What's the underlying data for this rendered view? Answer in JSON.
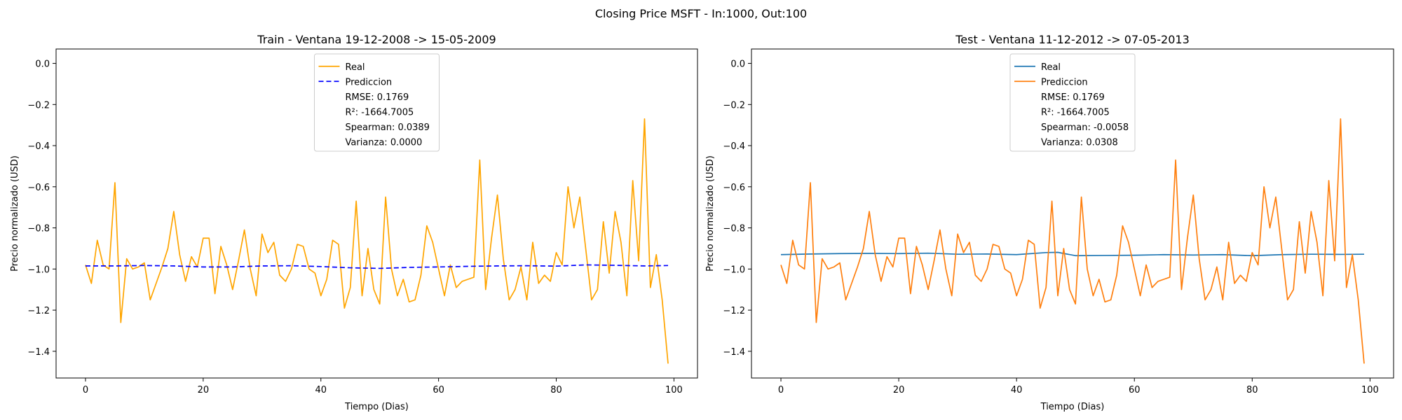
{
  "suptitle": "Closing Price MSFT - In:1000, Out:100",
  "chart_data": [
    {
      "type": "line",
      "title": "Train - Ventana 19-12-2008 -> 15-05-2009",
      "xlabel": "Tiempo (Dias)",
      "ylabel": "Precio normalizado (USD)",
      "xlim": [
        -5,
        104
      ],
      "ylim": [
        -1.53,
        0.07
      ],
      "xticks": [
        0,
        20,
        40,
        60,
        80,
        100
      ],
      "yticks": [
        0.0,
        -0.2,
        -0.4,
        -0.6,
        -0.8,
        -1.0,
        -1.2,
        -1.4
      ],
      "legend_position": "upper center",
      "series": [
        {
          "name": "Real",
          "color": "#ffa500",
          "style": "solid",
          "x": [
            0,
            1,
            2,
            3,
            4,
            5,
            6,
            7,
            8,
            9,
            10,
            11,
            12,
            13,
            14,
            15,
            16,
            17,
            18,
            19,
            20,
            21,
            22,
            23,
            24,
            25,
            26,
            27,
            28,
            29,
            30,
            31,
            32,
            33,
            34,
            35,
            36,
            37,
            38,
            39,
            40,
            41,
            42,
            43,
            44,
            45,
            46,
            47,
            48,
            49,
            50,
            51,
            52,
            53,
            54,
            55,
            56,
            57,
            58,
            59,
            60,
            61,
            62,
            63,
            64,
            65,
            66,
            67,
            68,
            69,
            70,
            71,
            72,
            73,
            74,
            75,
            76,
            77,
            78,
            79,
            80,
            81,
            82,
            83,
            84,
            85,
            86,
            87,
            88,
            89,
            90,
            91,
            92,
            93,
            94,
            95,
            96,
            97,
            98,
            99
          ],
          "values": [
            -0.98,
            -1.07,
            -0.86,
            -0.98,
            -1.0,
            -0.58,
            -1.26,
            -0.95,
            -1.0,
            -0.99,
            -0.97,
            -1.15,
            -1.07,
            -0.99,
            -0.9,
            -0.72,
            -0.93,
            -1.06,
            -0.94,
            -0.99,
            -0.85,
            -0.85,
            -1.12,
            -0.89,
            -0.98,
            -1.1,
            -0.96,
            -0.81,
            -1.0,
            -1.13,
            -0.83,
            -0.92,
            -0.87,
            -1.03,
            -1.06,
            -1.0,
            -0.88,
            -0.89,
            -1.0,
            -1.02,
            -1.13,
            -1.05,
            -0.86,
            -0.88,
            -1.19,
            -1.09,
            -0.67,
            -1.13,
            -0.9,
            -1.1,
            -1.17,
            -0.65,
            -1.0,
            -1.13,
            -1.05,
            -1.16,
            -1.15,
            -1.03,
            -0.79,
            -0.87,
            -1.0,
            -1.13,
            -0.98,
            -1.09,
            -1.06,
            -1.05,
            -1.04,
            -0.47,
            -1.1,
            -0.85,
            -0.64,
            -0.95,
            -1.15,
            -1.1,
            -0.99,
            -1.15,
            -0.87,
            -1.07,
            -1.03,
            -1.06,
            -0.92,
            -0.98,
            -0.6,
            -0.8,
            -0.65,
            -0.9,
            -1.15,
            -1.1,
            -0.77,
            -1.02,
            -0.72,
            -0.87,
            -1.13,
            -0.57,
            -0.96,
            -0.27,
            -1.09,
            -0.93,
            -1.15,
            -1.46
          ]
        },
        {
          "name": "Prediccion",
          "color": "#0000ff",
          "style": "dashed",
          "x": [
            0,
            5,
            10,
            15,
            20,
            25,
            30,
            35,
            40,
            45,
            50,
            55,
            60,
            65,
            70,
            75,
            80,
            85,
            90,
            95,
            99
          ],
          "values": [
            -0.985,
            -0.985,
            -0.983,
            -0.985,
            -0.99,
            -0.99,
            -0.985,
            -0.984,
            -0.988,
            -0.994,
            -0.997,
            -0.992,
            -0.99,
            -0.987,
            -0.985,
            -0.984,
            -0.986,
            -0.98,
            -0.982,
            -0.985,
            -0.983
          ]
        }
      ],
      "metrics": [
        "RMSE: 0.1769",
        "R²: -1664.7005",
        "Spearman: 0.0389",
        "Varianza: 0.0000"
      ]
    },
    {
      "type": "line",
      "title": "Test - Ventana 11-12-2012 -> 07-05-2013",
      "xlabel": "Tiempo (Dias)",
      "ylabel": "Precio normalizado (USD)",
      "xlim": [
        -5,
        104
      ],
      "ylim": [
        -1.53,
        0.07
      ],
      "xticks": [
        0,
        20,
        40,
        60,
        80,
        100
      ],
      "yticks": [
        0.0,
        -0.2,
        -0.4,
        -0.6,
        -0.8,
        -1.0,
        -1.2,
        -1.4
      ],
      "legend_position": "upper center",
      "series": [
        {
          "name": "Real",
          "color": "#1f77b4",
          "style": "solid",
          "x": [
            0,
            5,
            10,
            15,
            20,
            25,
            30,
            35,
            40,
            45,
            47,
            50,
            55,
            60,
            65,
            70,
            75,
            80,
            85,
            90,
            95,
            99
          ],
          "values": [
            -0.93,
            -0.927,
            -0.925,
            -0.924,
            -0.925,
            -0.923,
            -0.928,
            -0.927,
            -0.93,
            -0.92,
            -0.919,
            -0.935,
            -0.934,
            -0.933,
            -0.93,
            -0.932,
            -0.93,
            -0.935,
            -0.93,
            -0.928,
            -0.929,
            -0.928
          ]
        },
        {
          "name": "Prediccion",
          "color": "#ff7f0e",
          "style": "solid",
          "x": [
            0,
            1,
            2,
            3,
            4,
            5,
            6,
            7,
            8,
            9,
            10,
            11,
            12,
            13,
            14,
            15,
            16,
            17,
            18,
            19,
            20,
            21,
            22,
            23,
            24,
            25,
            26,
            27,
            28,
            29,
            30,
            31,
            32,
            33,
            34,
            35,
            36,
            37,
            38,
            39,
            40,
            41,
            42,
            43,
            44,
            45,
            46,
            47,
            48,
            49,
            50,
            51,
            52,
            53,
            54,
            55,
            56,
            57,
            58,
            59,
            60,
            61,
            62,
            63,
            64,
            65,
            66,
            67,
            68,
            69,
            70,
            71,
            72,
            73,
            74,
            75,
            76,
            77,
            78,
            79,
            80,
            81,
            82,
            83,
            84,
            85,
            86,
            87,
            88,
            89,
            90,
            91,
            92,
            93,
            94,
            95,
            96,
            97,
            98,
            99
          ],
          "values": [
            -0.98,
            -1.07,
            -0.86,
            -0.98,
            -1.0,
            -0.58,
            -1.26,
            -0.95,
            -1.0,
            -0.99,
            -0.97,
            -1.15,
            -1.07,
            -0.99,
            -0.9,
            -0.72,
            -0.93,
            -1.06,
            -0.94,
            -0.99,
            -0.85,
            -0.85,
            -1.12,
            -0.89,
            -0.98,
            -1.1,
            -0.96,
            -0.81,
            -1.0,
            -1.13,
            -0.83,
            -0.92,
            -0.87,
            -1.03,
            -1.06,
            -1.0,
            -0.88,
            -0.89,
            -1.0,
            -1.02,
            -1.13,
            -1.05,
            -0.86,
            -0.88,
            -1.19,
            -1.09,
            -0.67,
            -1.13,
            -0.9,
            -1.1,
            -1.17,
            -0.65,
            -1.0,
            -1.13,
            -1.05,
            -1.16,
            -1.15,
            -1.03,
            -0.79,
            -0.87,
            -1.0,
            -1.13,
            -0.98,
            -1.09,
            -1.06,
            -1.05,
            -1.04,
            -0.47,
            -1.1,
            -0.85,
            -0.64,
            -0.95,
            -1.15,
            -1.1,
            -0.99,
            -1.15,
            -0.87,
            -1.07,
            -1.03,
            -1.06,
            -0.92,
            -0.98,
            -0.6,
            -0.8,
            -0.65,
            -0.9,
            -1.15,
            -1.1,
            -0.77,
            -1.02,
            -0.72,
            -0.87,
            -1.13,
            -0.57,
            -0.96,
            -0.27,
            -1.09,
            -0.93,
            -1.15,
            -1.46
          ]
        }
      ],
      "metrics": [
        "RMSE: 0.1769",
        "R²: -1664.7005",
        "Spearman: -0.0058",
        "Varianza: 0.0308"
      ]
    }
  ]
}
